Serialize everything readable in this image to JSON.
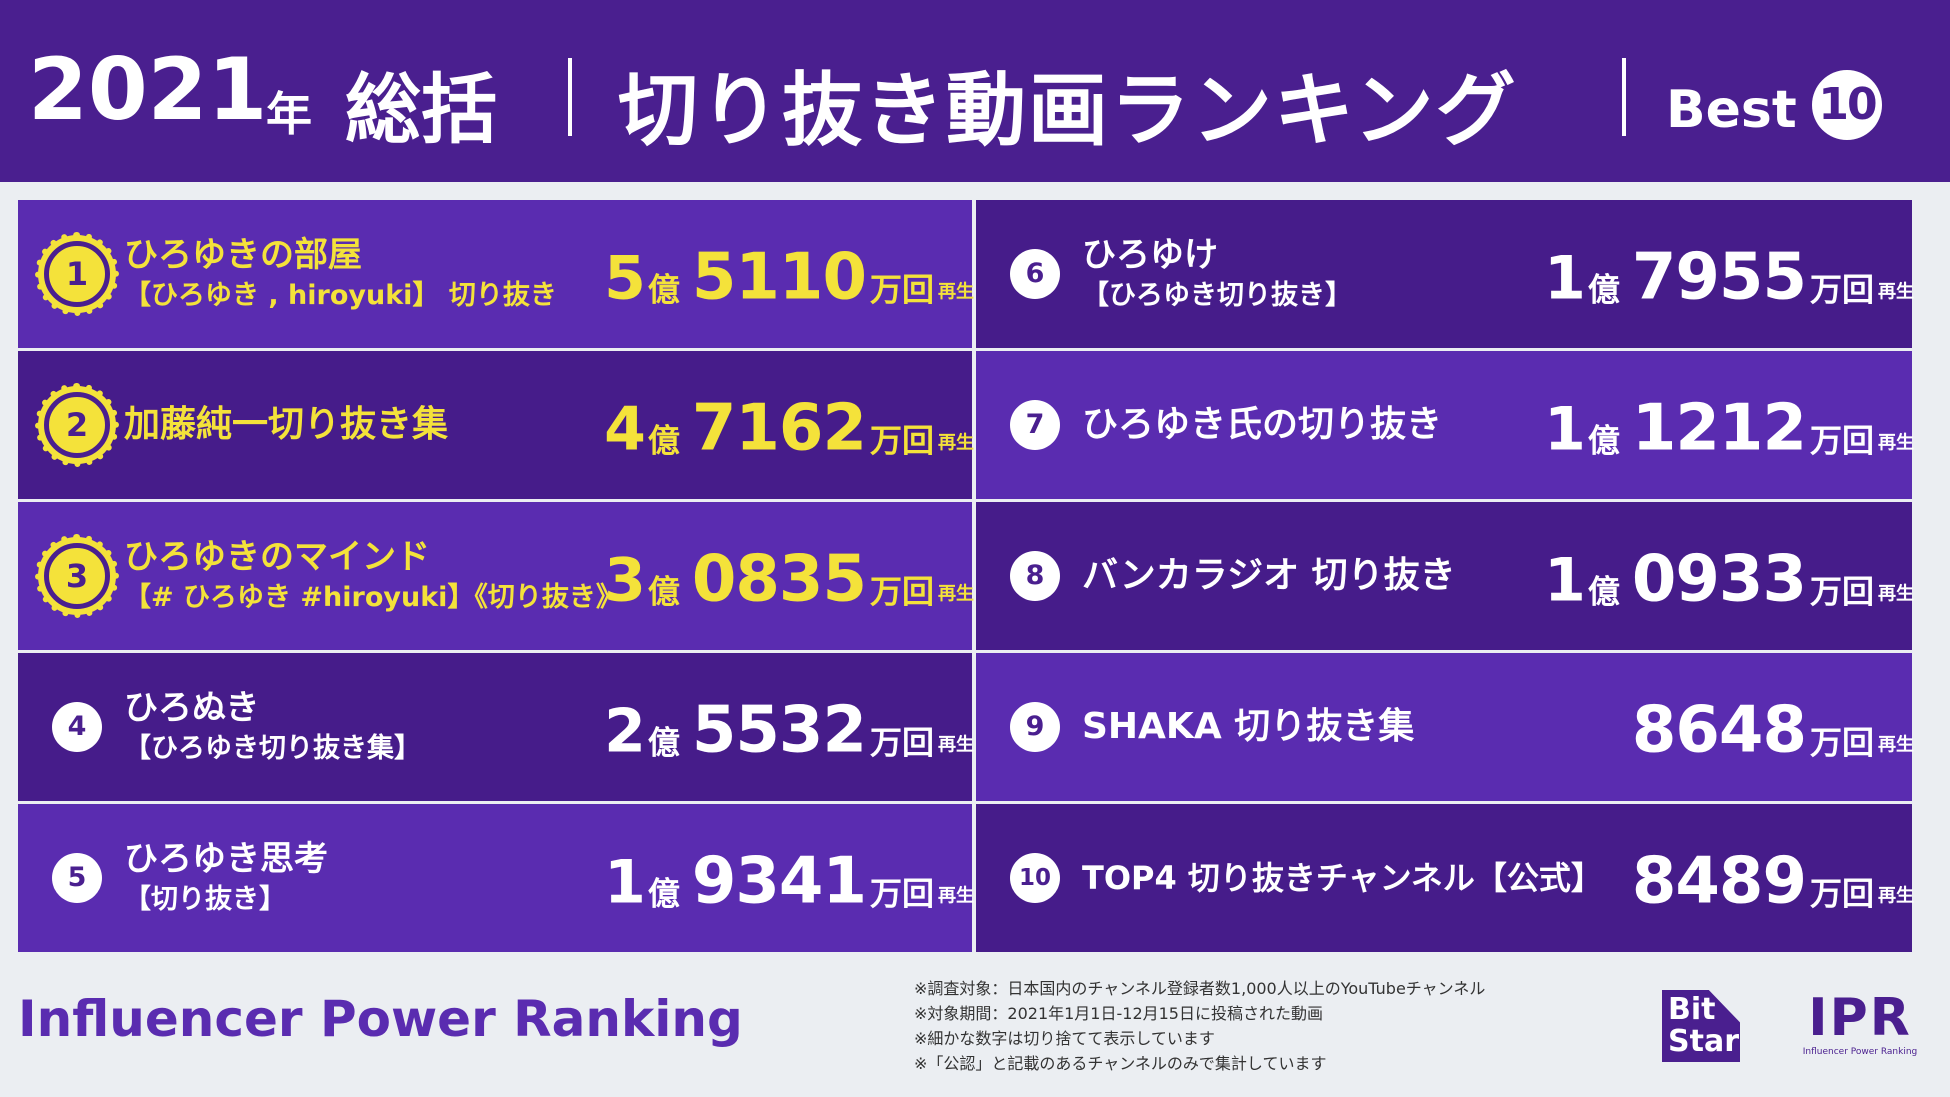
{
  "header": {
    "year": "2021",
    "year_suffix": "年",
    "summary": "総括",
    "title": "切り抜き動画ランキング",
    "best_label": "Best",
    "best_count": "10"
  },
  "colors": {
    "accent": "#4a1f8f",
    "card_light": "#5a2cb0",
    "card_dark": "#461c8a",
    "gold": "#f4e23a"
  },
  "ranking": [
    {
      "rank": "1",
      "name1": "ひろゆきの部屋",
      "name2": "【ひろゆき , hiroyuki】 切り抜き",
      "oku": "5",
      "oku_unit": "億",
      "man": "5110",
      "man_unit": "万回",
      "sai": "再生"
    },
    {
      "rank": "2",
      "name1": "加藤純一切り抜き集",
      "name2": "",
      "oku": "4",
      "oku_unit": "億",
      "man": "7162",
      "man_unit": "万回",
      "sai": "再生"
    },
    {
      "rank": "3",
      "name1": "ひろゆきのマインド",
      "name2": "【# ひろゆき #hiroyuki】《切り抜き》",
      "oku": "3",
      "oku_unit": "億",
      "man": "0835",
      "man_unit": "万回",
      "sai": "再生"
    },
    {
      "rank": "4",
      "name1": "ひろぬき",
      "name2": "【ひろゆき切り抜き集】",
      "oku": "2",
      "oku_unit": "億",
      "man": "5532",
      "man_unit": "万回",
      "sai": "再生"
    },
    {
      "rank": "5",
      "name1": "ひろゆき思考",
      "name2": "【切り抜き】",
      "oku": "1",
      "oku_unit": "億",
      "man": "9341",
      "man_unit": "万回",
      "sai": "再生"
    },
    {
      "rank": "6",
      "name1": "ひろゆけ",
      "name2": "【ひろゆき切り抜き】",
      "oku": "1",
      "oku_unit": "億",
      "man": "7955",
      "man_unit": "万回",
      "sai": "再生"
    },
    {
      "rank": "7",
      "name1": "ひろゆき氏の切り抜き",
      "name2": "",
      "oku": "1",
      "oku_unit": "億",
      "man": "1212",
      "man_unit": "万回",
      "sai": "再生"
    },
    {
      "rank": "8",
      "name1": "バンカラジオ 切り抜き",
      "name2": "",
      "oku": "1",
      "oku_unit": "億",
      "man": "0933",
      "man_unit": "万回",
      "sai": "再生"
    },
    {
      "rank": "9",
      "name1": "SHAKA 切り抜き集",
      "name2": "",
      "oku": "",
      "oku_unit": "",
      "man": "8648",
      "man_unit": "万回",
      "sai": "再生"
    },
    {
      "rank": "10",
      "name1": "TOP4 切り抜きチャンネル【公式】",
      "name2": "",
      "oku": "",
      "oku_unit": "",
      "man": "8489",
      "man_unit": "万回",
      "sai": "再生"
    }
  ],
  "footer": {
    "brand": "Influencer Power Ranking",
    "notes": [
      "※調査対象：日本国内のチャンネル登録者数1,000人以上のYouTubeチャンネル",
      "※対象期間：2021年1月1日-12月15日に投稿された動画",
      "※細かな数字は切り捨てて表示しています",
      "※「公認」と記載のあるチャンネルのみで集計しています"
    ],
    "bitstar_logo": "Bit Star",
    "ipr_logo": "IPR",
    "ipr_sub": "Influencer Power Ranking"
  }
}
